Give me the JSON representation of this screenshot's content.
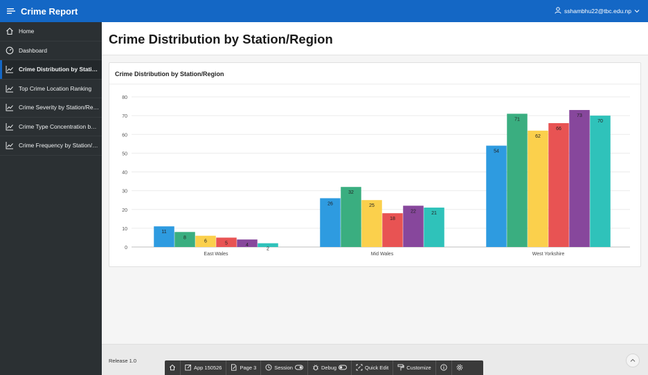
{
  "app": {
    "title": "Crime Report"
  },
  "user": {
    "email": "sshambhu22@tbc.edu.np"
  },
  "sidebar": {
    "items": [
      {
        "label": "Home",
        "icon": "home-icon"
      },
      {
        "label": "Dashboard",
        "icon": "gauge-icon"
      },
      {
        "label": "Crime Distribution by Station/Region",
        "icon": "line-chart-icon",
        "active": true
      },
      {
        "label": "Top Crime Location Ranking",
        "icon": "line-chart-icon"
      },
      {
        "label": "Crime Severity by Station/Region",
        "icon": "line-chart-icon"
      },
      {
        "label": "Crime Type Concentration by Region",
        "icon": "line-chart-icon"
      },
      {
        "label": "Crime Frequency by Station/Region",
        "icon": "line-chart-icon"
      }
    ]
  },
  "page": {
    "title": "Crime Distribution by Station/Region"
  },
  "region": {
    "title": "Crime Distribution by Station/Region"
  },
  "chart_data": {
    "type": "bar",
    "title": "",
    "xlabel": "",
    "ylabel": "",
    "categories": [
      "East Wales",
      "Mid Wales",
      "West Yorkshire"
    ],
    "series": [
      {
        "color": "#2e9be0",
        "values": [
          11,
          26,
          54
        ]
      },
      {
        "color": "#3aae80",
        "values": [
          8,
          32,
          71
        ]
      },
      {
        "color": "#fbd04c",
        "values": [
          6,
          25,
          62
        ]
      },
      {
        "color": "#e85353",
        "values": [
          5,
          18,
          66
        ]
      },
      {
        "color": "#87479c",
        "values": [
          4,
          22,
          73
        ]
      },
      {
        "color": "#2fc2ba",
        "values": [
          2,
          21,
          70
        ]
      }
    ],
    "ylim": [
      0,
      80
    ],
    "yticks": [
      "0",
      "10",
      "20",
      "30",
      "40",
      "50",
      "60",
      "70",
      "80"
    ],
    "grid": true,
    "data_labels": true
  },
  "footer": {
    "release": "Release 1.0"
  },
  "devbar": {
    "items": [
      {
        "label": "",
        "icon": "home-icon"
      },
      {
        "label": "App 150526",
        "icon": "edit-icon"
      },
      {
        "label": "Page 3",
        "icon": "page-edit-icon"
      },
      {
        "label": "Session",
        "icon": "session-icon"
      },
      {
        "label": "Debug",
        "icon": "bug-icon"
      },
      {
        "label": "Quick Edit",
        "icon": "quick-edit-icon"
      },
      {
        "label": "Customize",
        "icon": "paint-roller-icon"
      },
      {
        "label": "",
        "icon": "info-icon"
      },
      {
        "label": "",
        "icon": "gear-icon"
      }
    ]
  },
  "colors": {
    "brand": "#1467c5",
    "sidebar": "#2b3033",
    "devbar": "#3a3a3a"
  }
}
